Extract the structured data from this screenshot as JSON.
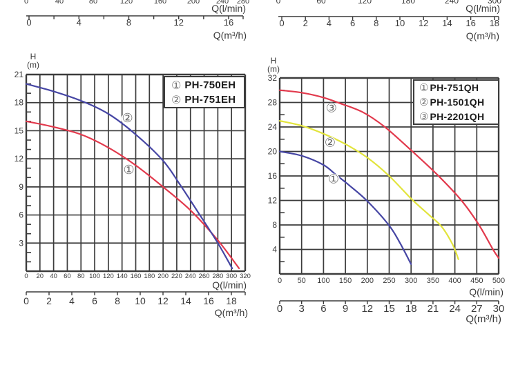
{
  "colors": {
    "background": "#ffffff",
    "axis_and_text": "#3a3a3a",
    "grid": "#3c3c3c",
    "curve_blue": "#4646a4",
    "curve_red": "#e23a4d",
    "curve_yellow": "#e2e43c",
    "legend_symbol_gray": "#6a6a6a"
  },
  "top_strips": [
    {
      "side": "left",
      "cut_ticks": [
        "0",
        "40",
        "80",
        "120",
        "160",
        "200",
        "240",
        "280"
      ],
      "flow_unit": "Q(l/min)",
      "m3h_ticks": [
        0,
        4,
        8,
        12,
        16
      ],
      "m3h_unit": "Q(m³/h)"
    },
    {
      "side": "right",
      "cut_ticks": [
        "0",
        "60",
        "120",
        "180",
        "240",
        "300"
      ],
      "flow_unit": "Q(l/min)",
      "m3h_ticks": [
        0,
        2,
        4,
        6,
        8,
        10,
        12,
        14,
        16,
        18
      ],
      "m3h_unit": "Q(m³/h)"
    }
  ],
  "chart_data": [
    {
      "type": "line",
      "title": "",
      "ylabel": "H",
      "ylabel_unit": "(m)",
      "x_axis": {
        "unit": "Q(l/min)",
        "min": 0,
        "max": 320,
        "step": 20,
        "ticks": [
          0,
          20,
          40,
          60,
          80,
          100,
          120,
          140,
          160,
          180,
          200,
          220,
          240,
          260,
          280,
          300,
          320
        ]
      },
      "x2_axis": {
        "unit": "Q(m³/h)",
        "ticks": [
          0,
          2,
          4,
          6,
          8,
          10,
          12,
          14,
          16,
          18
        ]
      },
      "y_axis": {
        "min": 0,
        "max": 21,
        "step": 3,
        "minor_step": 1,
        "ticks": [
          3,
          6,
          9,
          12,
          15,
          18,
          21
        ]
      },
      "grid": true,
      "legend_position": "top-right",
      "legend": [
        {
          "symbol": "①",
          "label": "PH-750EH"
        },
        {
          "symbol": "②",
          "label": "PH-751EH"
        }
      ],
      "series": [
        {
          "symbol": "①",
          "name": "PH-750EH",
          "color": "#e23a4d",
          "points": [
            [
              0,
              16
            ],
            [
              40,
              15.4
            ],
            [
              80,
              14.6
            ],
            [
              120,
              13.2
            ],
            [
              160,
              11.3
            ],
            [
              200,
              9.0
            ],
            [
              240,
              6.5
            ],
            [
              280,
              3.3
            ],
            [
              311,
              0.3
            ]
          ],
          "label_at": [
            150,
            10.4
          ]
        },
        {
          "symbol": "②",
          "name": "PH-751EH",
          "color": "#4646a4",
          "points": [
            [
              0,
              20
            ],
            [
              40,
              19.2
            ],
            [
              80,
              18.2
            ],
            [
              120,
              16.8
            ],
            [
              160,
              14.6
            ],
            [
              200,
              11.8
            ],
            [
              226,
              9.1
            ],
            [
              252,
              6.2
            ],
            [
              280,
              3.0
            ],
            [
              301,
              0.3
            ]
          ],
          "label_at": [
            148,
            15.9
          ]
        }
      ]
    },
    {
      "type": "line",
      "title": "",
      "ylabel": "H",
      "ylabel_unit": "(m)",
      "x_axis": {
        "unit": "Q(l/min)",
        "min": 0,
        "max": 500,
        "step": 50,
        "ticks": [
          0,
          50,
          100,
          150,
          200,
          250,
          300,
          350,
          400,
          450,
          500
        ]
      },
      "x2_axis": {
        "unit": "Q(m³/h)",
        "ticks": [
          0,
          3,
          6,
          9,
          12,
          15,
          18,
          21,
          24,
          27,
          30
        ]
      },
      "y_axis": {
        "min": 0,
        "max": 32,
        "step": 4,
        "minor_step": 2,
        "ticks": [
          4,
          8,
          12,
          16,
          20,
          24,
          28,
          32
        ]
      },
      "grid": true,
      "legend_position": "top-right",
      "legend": [
        {
          "symbol": "①",
          "label": "PH-751QH"
        },
        {
          "symbol": "②",
          "label": "PH-1501QH"
        },
        {
          "symbol": "③",
          "label": "PH-2201QH"
        }
      ],
      "series": [
        {
          "symbol": "①",
          "name": "PH-751QH",
          "color": "#4646a4",
          "points": [
            [
              0,
              20
            ],
            [
              50,
              19.3
            ],
            [
              100,
              17.8
            ],
            [
              130,
              16.1
            ],
            [
              160,
              14.4
            ],
            [
              200,
              11.9
            ],
            [
              250,
              7.9
            ],
            [
              275,
              5.0
            ],
            [
              300,
              1.6
            ]
          ],
          "label_at": [
            123,
            14.8
          ]
        },
        {
          "symbol": "②",
          "name": "PH-1501QH",
          "color": "#e2e43c",
          "points": [
            [
              0,
              25
            ],
            [
              50,
              24.2
            ],
            [
              100,
              22.9
            ],
            [
              150,
              21.2
            ],
            [
              200,
              19.0
            ],
            [
              250,
              16.0
            ],
            [
              300,
              12.3
            ],
            [
              340,
              9.7
            ],
            [
              370,
              7.7
            ],
            [
              395,
              4.8
            ],
            [
              408,
              2.4
            ]
          ],
          "label_at": [
            115,
            20.8
          ]
        },
        {
          "symbol": "③",
          "name": "PH-2201QH",
          "color": "#e23a4d",
          "points": [
            [
              0,
              30
            ],
            [
              50,
              29.6
            ],
            [
              100,
              28.8
            ],
            [
              140,
              27.8
            ],
            [
              190,
              26.4
            ],
            [
              240,
              24.0
            ],
            [
              300,
              20.2
            ],
            [
              360,
              16.2
            ],
            [
              415,
              12.0
            ],
            [
              455,
              8.0
            ],
            [
              487,
              4.0
            ],
            [
              500,
              2.6
            ]
          ],
          "label_at": [
            118,
            26.4
          ]
        }
      ]
    }
  ]
}
